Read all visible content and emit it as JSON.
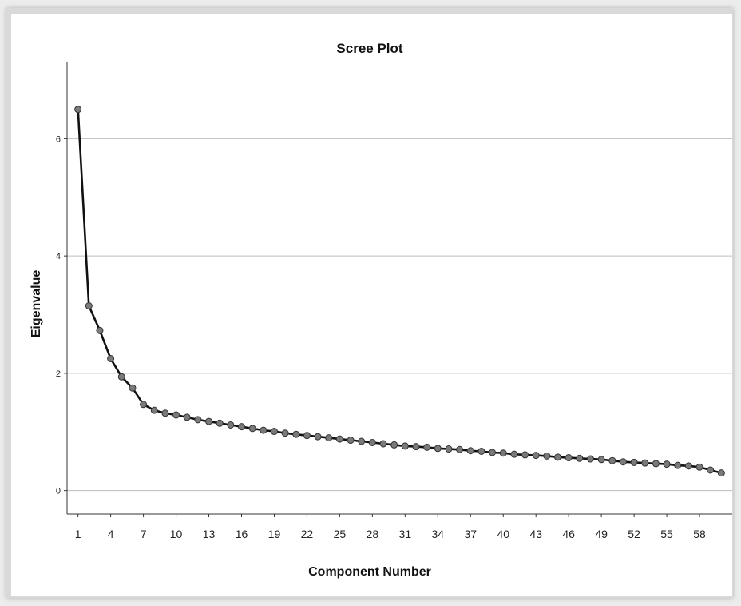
{
  "chart_data": {
    "type": "line",
    "title": "Scree Plot",
    "xlabel": "Component Number",
    "ylabel": "Eigenvalue",
    "xlim": [
      0,
      61
    ],
    "ylim": [
      -0.4,
      7.3
    ],
    "yticks": [
      0,
      2,
      4,
      6
    ],
    "xticks": [
      1,
      4,
      7,
      10,
      13,
      16,
      19,
      22,
      25,
      28,
      31,
      34,
      37,
      40,
      43,
      46,
      49,
      52,
      55,
      58
    ],
    "grid": "horizontal",
    "x": [
      1,
      2,
      3,
      4,
      5,
      6,
      7,
      8,
      9,
      10,
      11,
      12,
      13,
      14,
      15,
      16,
      17,
      18,
      19,
      20,
      21,
      22,
      23,
      24,
      25,
      26,
      27,
      28,
      29,
      30,
      31,
      32,
      33,
      34,
      35,
      36,
      37,
      38,
      39,
      40,
      41,
      42,
      43,
      44,
      45,
      46,
      47,
      48,
      49,
      50,
      51,
      52,
      53,
      54,
      55,
      56,
      57,
      58,
      59,
      60
    ],
    "series": [
      {
        "values": [
          6.5,
          3.15,
          2.73,
          2.25,
          1.94,
          1.75,
          1.47,
          1.37,
          1.32,
          1.29,
          1.25,
          1.21,
          1.18,
          1.15,
          1.12,
          1.09,
          1.06,
          1.03,
          1.01,
          0.98,
          0.96,
          0.94,
          0.92,
          0.9,
          0.88,
          0.86,
          0.84,
          0.82,
          0.8,
          0.78,
          0.76,
          0.75,
          0.74,
          0.72,
          0.71,
          0.7,
          0.68,
          0.67,
          0.65,
          0.64,
          0.62,
          0.61,
          0.6,
          0.59,
          0.57,
          0.56,
          0.55,
          0.54,
          0.53,
          0.51,
          0.49,
          0.48,
          0.47,
          0.46,
          0.45,
          0.43,
          0.42,
          0.4,
          0.35,
          0.3
        ]
      }
    ]
  },
  "colors": {
    "line": "#111111",
    "marker_fill": "#7a7a7a",
    "grid": "#bdbdbd",
    "axis": "#333333"
  }
}
